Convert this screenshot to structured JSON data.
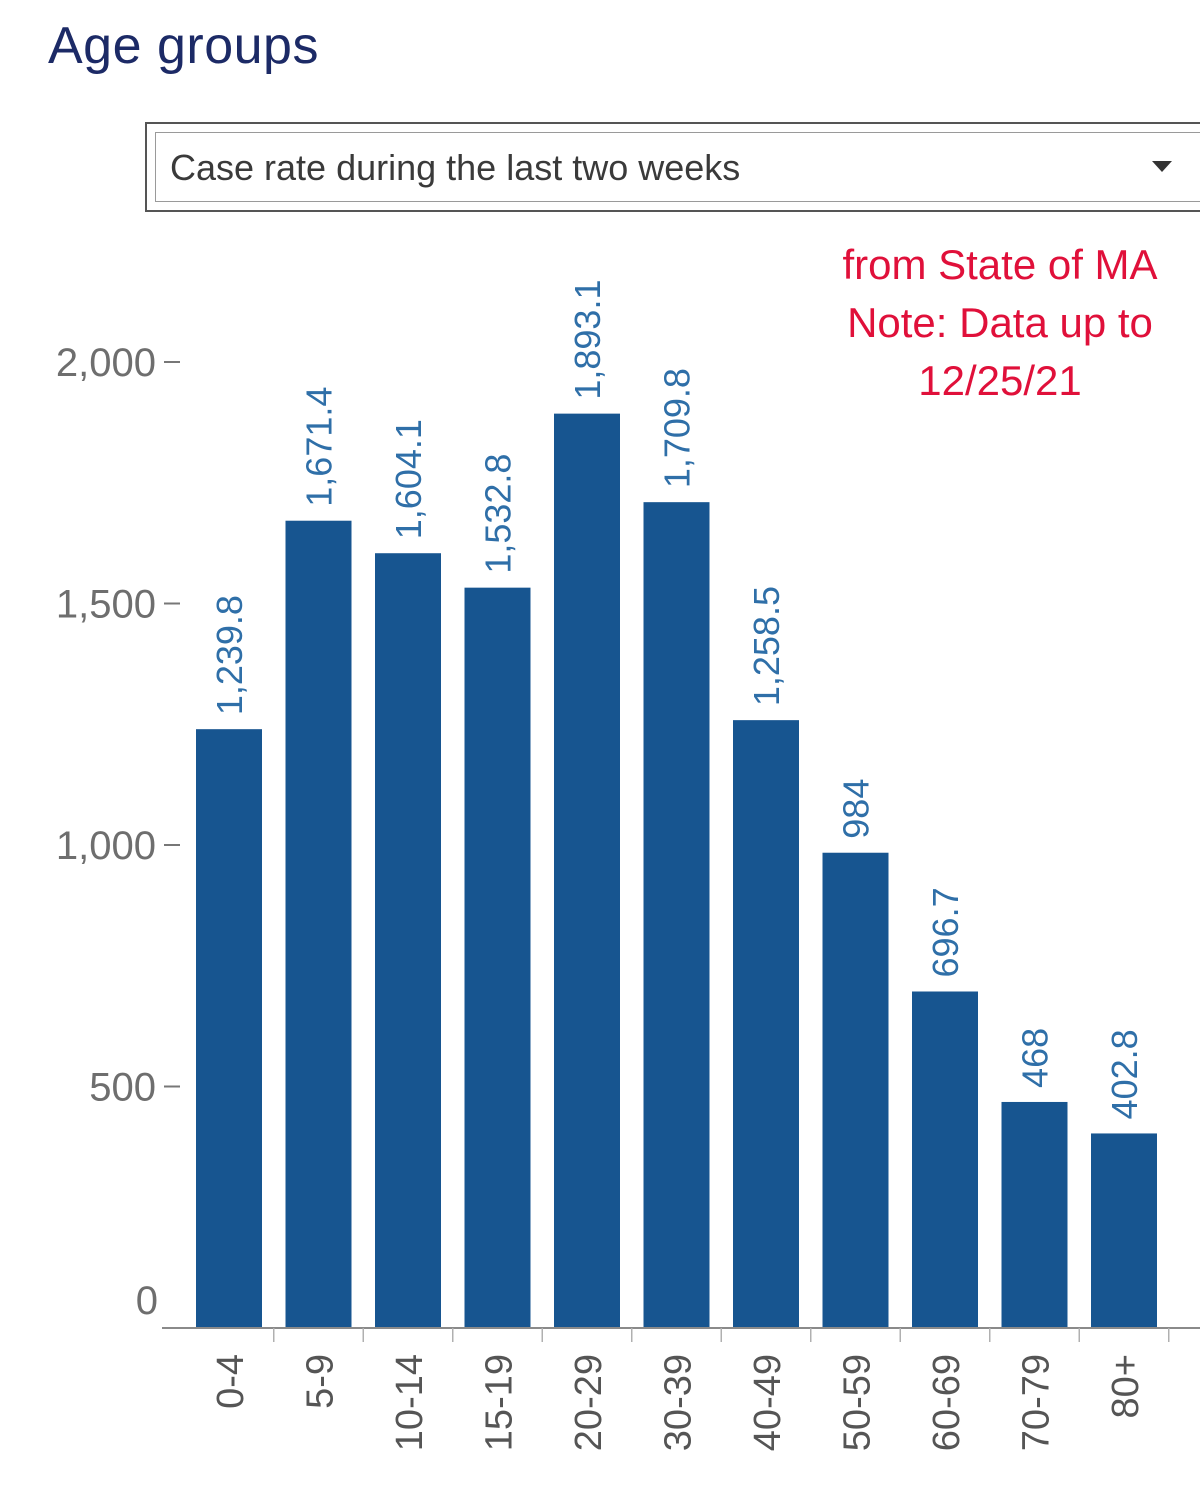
{
  "header": {
    "title": "Age groups"
  },
  "dropdown": {
    "selected": "Case rate during the last two weeks"
  },
  "note": {
    "lines": [
      "from State of MA",
      "Note: Data up to",
      "12/25/21"
    ]
  },
  "colors": {
    "bar": "#175590",
    "note": "#e0103a",
    "title": "#1c2a66"
  },
  "chart_data": {
    "type": "bar",
    "categories": [
      "0-4",
      "5-9",
      "10-14",
      "15-19",
      "20-29",
      "30-39",
      "40-49",
      "50-59",
      "60-69",
      "70-79",
      "80+"
    ],
    "values": [
      1239.8,
      1671.4,
      1604.1,
      1532.8,
      1893.1,
      1709.8,
      1258.5,
      984,
      696.7,
      468,
      402.8
    ],
    "value_labels": [
      "1,239.8",
      "1,671.4",
      "1,604.1",
      "1,532.8",
      "1,893.1",
      "1,709.8",
      "1,258.5",
      "984",
      "696.7",
      "468",
      "402.8"
    ],
    "yticks": [
      0,
      500,
      1000,
      1500,
      2000
    ],
    "ytick_labels": [
      "0",
      "500",
      "1,000",
      "1,500",
      "2,000"
    ],
    "ylim": [
      0,
      2000
    ],
    "title": "",
    "xlabel": "",
    "ylabel": "",
    "grid": false
  }
}
